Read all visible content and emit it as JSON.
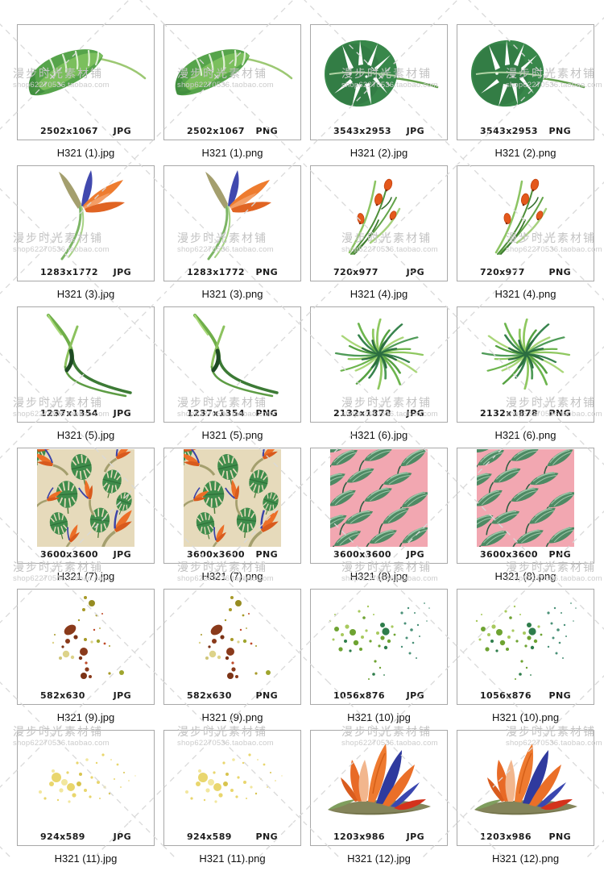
{
  "watermark": {
    "shop_name": "漫步时光素材铺",
    "shop_url": "shop62270536.taobao.com"
  },
  "formats": {
    "jpg_label": "JPG",
    "png_label": "PNG"
  },
  "items": [
    {
      "dims": "2502x1067",
      "jpg_name": "H321 (1).jpg",
      "png_name": "H321 (1).png",
      "art": "banana-leaf-art"
    },
    {
      "dims": "3543x2953",
      "jpg_name": "H321 (2).jpg",
      "png_name": "H321 (2).png",
      "art": "monstera-leaf-art"
    },
    {
      "dims": "1283x1772",
      "jpg_name": "H321 (3).jpg",
      "png_name": "H321 (3).png",
      "art": "bird-of-paradise-art"
    },
    {
      "dims": "720x977",
      "jpg_name": "H321 (4).jpg",
      "png_name": "H321 (4).png",
      "art": "flower-buds-art"
    },
    {
      "dims": "1237x1354",
      "jpg_name": "H321 (5).jpg",
      "png_name": "H321 (5).png",
      "art": "grass-blades-art"
    },
    {
      "dims": "2132x1878",
      "jpg_name": "H321 (6).jpg",
      "png_name": "H321 (6).png",
      "art": "palm-fan-art"
    },
    {
      "dims": "3600x3600",
      "jpg_name": "H321 (7).jpg",
      "png_name": "H321 (7).png",
      "art": "tropical-pattern-beige-art"
    },
    {
      "dims": "3600x3600",
      "jpg_name": "H321 (8).jpg",
      "png_name": "H321 (8).png",
      "art": "leaf-pattern-pink-art"
    },
    {
      "dims": "582x630",
      "jpg_name": "H321 (9).jpg",
      "png_name": "H321 (9).png",
      "art": "splatter-brown-art"
    },
    {
      "dims": "1056x876",
      "jpg_name": "H321 (10).jpg",
      "png_name": "H321 (10).png",
      "art": "splatter-green-art"
    },
    {
      "dims": "924x589",
      "jpg_name": "H321 (11).jpg",
      "png_name": "H321 (11).png",
      "art": "splatter-yellow-art"
    },
    {
      "dims": "1203x986",
      "jpg_name": "H321 (12).jpg",
      "png_name": "H321 (12).png",
      "art": "bird-of-paradise-bouquet-art"
    }
  ],
  "colors": {
    "cell_border": "#a8a8a8",
    "watermark_text": "#c3c3c3",
    "watermark_lines": "#d9d9d9",
    "pattern_beige_bg": "#e6dabb",
    "pattern_pink_bg": "#f2a7b1"
  }
}
